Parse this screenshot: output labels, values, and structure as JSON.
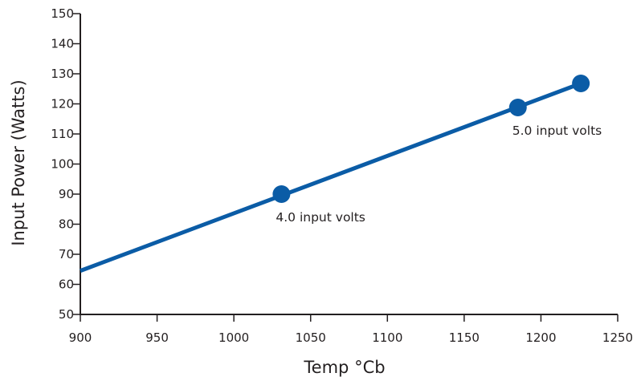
{
  "chart_data": {
    "type": "line",
    "title": "",
    "xlabel": "Temp °Cb",
    "ylabel": "Input Power (Watts)",
    "xlim": [
      900,
      1250
    ],
    "ylim": [
      50,
      150
    ],
    "xticks": [
      900,
      950,
      1000,
      1050,
      1100,
      1150,
      1200,
      1250
    ],
    "yticks": [
      50,
      60,
      70,
      80,
      90,
      100,
      110,
      120,
      130,
      140,
      150
    ],
    "grid": false,
    "legend": "none",
    "series": [
      {
        "color": "#0b5ca6",
        "x": [
          900,
          1226
        ],
        "y": [
          64.5,
          126.8
        ]
      }
    ],
    "points": [
      {
        "x": 1031,
        "y": 90,
        "label": "4.0 input volts"
      },
      {
        "x": 1185,
        "y": 118.8,
        "label": "5.0 input volts"
      },
      {
        "x": 1226,
        "y": 126.8,
        "label": ""
      }
    ],
    "colors": {
      "series": "#0b5ca6",
      "axis": "#231f20",
      "text": "#231f20"
    }
  }
}
